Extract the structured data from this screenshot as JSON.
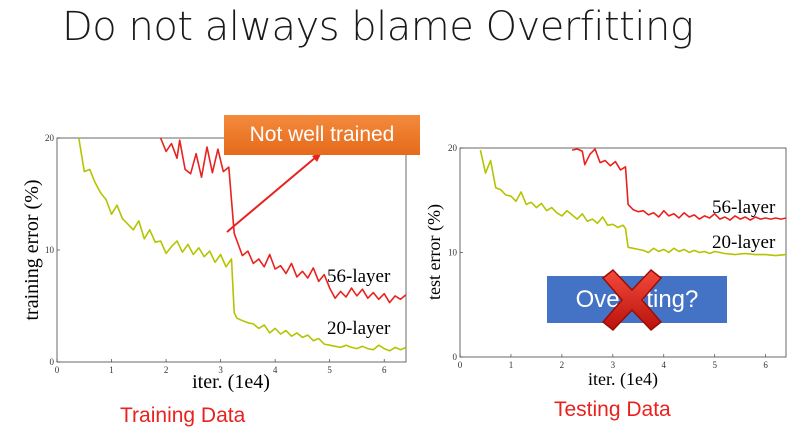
{
  "slide": {
    "title": "Do not always blame Overfitting",
    "callout": "Not well trained",
    "question": "Overfitting?",
    "caption_train": "Training Data",
    "caption_test": "Testing Data",
    "cross_icon": "red-cross-icon",
    "colors": {
      "red": "#e8221e",
      "yellow": "#b5c400",
      "orange": "#ef7a2c",
      "blue": "#4472c4"
    }
  },
  "chart_data": [
    {
      "type": "line",
      "title": "",
      "xlabel": "iter. (1e4)",
      "ylabel": "training error (%)",
      "xlim": [
        0,
        6.4
      ],
      "ylim": [
        0,
        20
      ],
      "xticks": [
        "0",
        "1",
        "2",
        "3",
        "4",
        "5",
        "6"
      ],
      "yticks": [
        "0",
        "10",
        "20"
      ],
      "series": [
        {
          "name": "56-layer",
          "color": "#e8221e",
          "x": [
            1.9,
            2.0,
            2.1,
            2.2,
            2.25,
            2.35,
            2.45,
            2.55,
            2.65,
            2.75,
            2.85,
            2.95,
            3.05,
            3.15,
            3.25,
            3.3,
            3.4,
            3.5,
            3.6,
            3.7,
            3.8,
            3.9,
            4.0,
            4.1,
            4.2,
            4.3,
            4.4,
            4.5,
            4.6,
            4.7,
            4.8,
            4.9,
            5.0,
            5.1,
            5.2,
            5.3,
            5.4,
            5.5,
            5.6,
            5.7,
            5.8,
            5.9,
            6.0,
            6.1,
            6.2,
            6.3,
            6.4
          ],
          "y": [
            20.0,
            18.8,
            19.5,
            18.2,
            19.8,
            17.2,
            16.8,
            18.6,
            16.5,
            19.2,
            16.9,
            19.0,
            17.0,
            17.4,
            11.5,
            10.8,
            9.5,
            9.9,
            8.8,
            9.2,
            8.5,
            9.6,
            8.3,
            8.6,
            7.9,
            8.8,
            7.6,
            8.1,
            7.5,
            8.4,
            7.2,
            7.8,
            6.6,
            5.7,
            6.3,
            5.8,
            6.6,
            5.9,
            6.5,
            5.7,
            6.2,
            5.6,
            6.1,
            5.3,
            5.9,
            5.6,
            6.0
          ]
        },
        {
          "name": "20-layer",
          "color": "#b5c400",
          "x": [
            0.4,
            0.5,
            0.6,
            0.7,
            0.8,
            0.9,
            1.0,
            1.1,
            1.2,
            1.3,
            1.4,
            1.5,
            1.6,
            1.7,
            1.8,
            1.9,
            2.0,
            2.1,
            2.2,
            2.3,
            2.4,
            2.5,
            2.6,
            2.7,
            2.8,
            2.9,
            3.0,
            3.1,
            3.2,
            3.25,
            3.3,
            3.4,
            3.5,
            3.6,
            3.7,
            3.8,
            3.9,
            4.0,
            4.1,
            4.2,
            4.3,
            4.4,
            4.5,
            4.6,
            4.7,
            4.8,
            4.9,
            5.0,
            5.1,
            5.2,
            5.3,
            5.4,
            5.5,
            5.6,
            5.7,
            5.8,
            5.9,
            6.0,
            6.1,
            6.2,
            6.3,
            6.4
          ],
          "y": [
            20.0,
            17.0,
            17.2,
            16.0,
            15.1,
            14.5,
            13.2,
            14.0,
            12.8,
            12.3,
            11.8,
            12.6,
            11.0,
            11.8,
            10.7,
            10.8,
            9.7,
            10.3,
            10.8,
            9.8,
            10.5,
            9.6,
            10.2,
            9.4,
            9.9,
            8.9,
            9.6,
            8.5,
            9.2,
            4.4,
            3.9,
            3.7,
            3.5,
            3.4,
            3.0,
            3.3,
            2.6,
            3.0,
            2.5,
            2.8,
            2.3,
            2.6,
            2.2,
            2.4,
            1.9,
            2.1,
            1.6,
            1.5,
            1.4,
            1.3,
            1.5,
            1.3,
            1.2,
            1.4,
            1.2,
            1.1,
            1.5,
            1.2,
            1.0,
            1.3,
            1.1,
            1.3
          ]
        }
      ],
      "annotations": [
        "56-layer",
        "20-layer"
      ]
    },
    {
      "type": "line",
      "title": "",
      "xlabel": "iter. (1e4)",
      "ylabel": "test error (%)",
      "xlim": [
        0,
        6.4
      ],
      "ylim": [
        0,
        20
      ],
      "xticks": [
        "0",
        "1",
        "2",
        "3",
        "4",
        "5",
        "6"
      ],
      "yticks": [
        "0",
        "10",
        "20"
      ],
      "series": [
        {
          "name": "56-layer",
          "color": "#e8221e",
          "x": [
            2.2,
            2.3,
            2.4,
            2.45,
            2.55,
            2.65,
            2.75,
            2.85,
            2.95,
            3.05,
            3.15,
            3.25,
            3.3,
            3.4,
            3.5,
            3.6,
            3.7,
            3.8,
            3.9,
            4.0,
            4.1,
            4.2,
            4.3,
            4.4,
            4.5,
            4.6,
            4.7,
            4.8,
            4.9,
            5.0,
            5.1,
            5.2,
            5.3,
            5.4,
            5.5,
            5.6,
            5.7,
            5.8,
            5.9,
            6.0,
            6.1,
            6.2,
            6.3,
            6.4
          ],
          "y": [
            19.8,
            19.9,
            19.7,
            18.4,
            19.4,
            19.9,
            18.6,
            18.8,
            18.3,
            18.7,
            17.9,
            18.2,
            14.6,
            14.1,
            13.9,
            14.0,
            13.6,
            13.8,
            13.4,
            14.0,
            13.5,
            13.7,
            13.3,
            13.8,
            13.4,
            13.6,
            13.2,
            13.5,
            13.3,
            13.7,
            13.2,
            13.4,
            13.1,
            13.5,
            13.2,
            13.4,
            13.1,
            13.4,
            13.2,
            13.3,
            13.2,
            13.3,
            13.2,
            13.3
          ]
        },
        {
          "name": "20-layer",
          "color": "#b5c400",
          "x": [
            0.4,
            0.5,
            0.6,
            0.7,
            0.8,
            0.9,
            1.0,
            1.1,
            1.2,
            1.3,
            1.4,
            1.5,
            1.6,
            1.7,
            1.8,
            1.9,
            2.0,
            2.1,
            2.2,
            2.3,
            2.4,
            2.5,
            2.6,
            2.7,
            2.8,
            2.9,
            3.0,
            3.1,
            3.2,
            3.25,
            3.3,
            3.4,
            3.5,
            3.6,
            3.7,
            3.8,
            3.9,
            4.0,
            4.1,
            4.2,
            4.3,
            4.4,
            4.5,
            4.6,
            4.7,
            4.8,
            4.9,
            5.0,
            5.2,
            5.4,
            5.6,
            5.8,
            6.0,
            6.2,
            6.4
          ],
          "y": [
            19.8,
            17.6,
            18.8,
            16.2,
            16.0,
            15.5,
            15.4,
            14.9,
            15.8,
            14.6,
            14.8,
            14.3,
            14.7,
            14.0,
            14.3,
            13.8,
            13.5,
            14.0,
            13.6,
            13.2,
            13.7,
            13.0,
            13.2,
            12.8,
            13.4,
            12.6,
            12.7,
            12.4,
            12.6,
            12.3,
            10.5,
            10.4,
            10.3,
            10.2,
            10.0,
            10.4,
            10.1,
            10.3,
            10.0,
            10.4,
            10.1,
            10.3,
            10.0,
            10.2,
            10.0,
            10.1,
            9.9,
            10.1,
            9.9,
            9.8,
            9.9,
            9.8,
            9.8,
            9.7,
            9.8
          ]
        }
      ],
      "annotations": [
        "56-layer",
        "20-layer"
      ]
    }
  ]
}
